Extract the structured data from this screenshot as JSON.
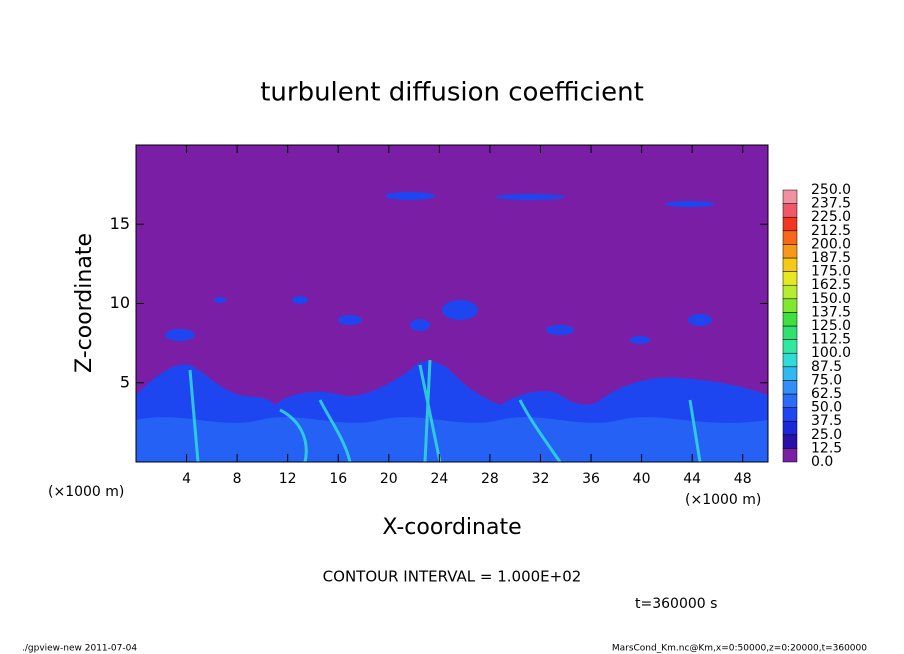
{
  "chart_data": {
    "type": "contour",
    "title": "turbulent diffusion coefficient",
    "xlabel": "X-coordinate",
    "ylabel": "Z-coordinate",
    "x_unit_left": "(×1000 m)",
    "x_unit_right": "(×1000 m)",
    "xlim": [
      0,
      50
    ],
    "ylim": [
      0,
      20
    ],
    "xticks": [
      4,
      8,
      12,
      16,
      20,
      24,
      28,
      32,
      36,
      40,
      44,
      48
    ],
    "yticks": [
      5,
      10,
      15
    ],
    "colorbar": {
      "levels": [
        {
          "value": 0,
          "label": "0.0"
        },
        {
          "value": 12.5,
          "label": "12.5"
        },
        {
          "value": 25,
          "label": "25.0"
        },
        {
          "value": 37.5,
          "label": "37.5"
        },
        {
          "value": 50,
          "label": "50.0"
        },
        {
          "value": 62.5,
          "label": "62.5"
        },
        {
          "value": 75,
          "label": "75.0"
        },
        {
          "value": 87.5,
          "label": "87.5"
        },
        {
          "value": 100,
          "label": "100.0"
        },
        {
          "value": 112.5,
          "label": "112.5"
        },
        {
          "value": 125,
          "label": "125.0"
        },
        {
          "value": 137.5,
          "label": "137.5"
        },
        {
          "value": 150,
          "label": "150.0"
        },
        {
          "value": 162.5,
          "label": "162.5"
        },
        {
          "value": 175,
          "label": "175.0"
        },
        {
          "value": 187.5,
          "label": "187.5"
        },
        {
          "value": 200,
          "label": "200.0"
        },
        {
          "value": 212.5,
          "label": "212.5"
        },
        {
          "value": 225,
          "label": "225.0"
        },
        {
          "value": 237.5,
          "label": "237.5"
        },
        {
          "value": 250,
          "label": "250.0"
        }
      ],
      "colors": [
        "#7a1ea6",
        "#2a10a8",
        "#1a28d8",
        "#1e46f0",
        "#2a6cf8",
        "#3090f8",
        "#30b8f0",
        "#30dcd8",
        "#30e8a0",
        "#30e070",
        "#40e040",
        "#80e830",
        "#b8ec30",
        "#e8e820",
        "#f8c818",
        "#f89818",
        "#f86818",
        "#f03820",
        "#f05868",
        "#f090a0"
      ]
    },
    "contour_interval": "CONTOUR INTERVAL = 1.000E+02",
    "time_label": "t=360000 s",
    "footer_left": "./gpview-new  2011-07-04",
    "footer_right": "MarsCond_Km.nc@Km,x=0:50000,z=0:20000,t=360000"
  }
}
